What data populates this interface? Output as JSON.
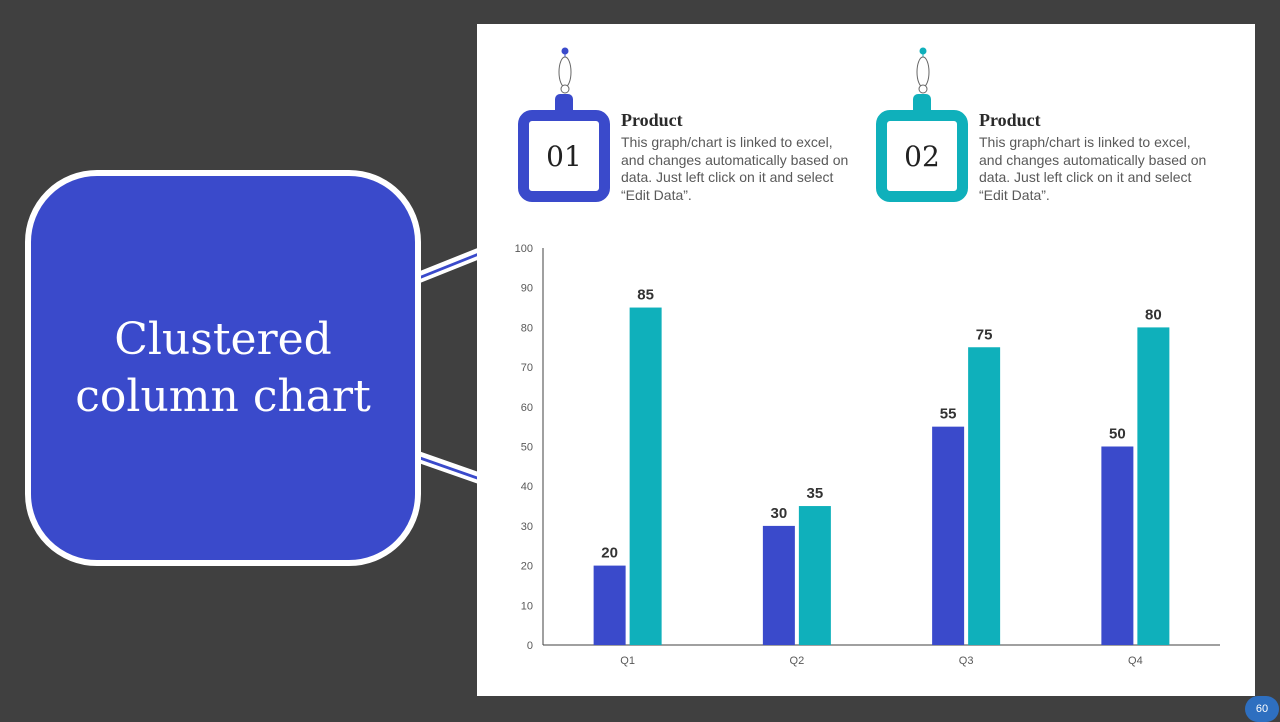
{
  "slide": {
    "title": "Clustered column chart",
    "page_number": "60",
    "colors": {
      "background": "#404040",
      "blue": "#3a4acb",
      "teal": "#0fb0bb",
      "panel": "#ffffff"
    }
  },
  "products": [
    {
      "number": "01",
      "title": "Product",
      "description": "This graph/chart is linked to excel, and changes automatically based on data. Just left click on it and select “Edit Data”.",
      "color": "#3a4acb"
    },
    {
      "number": "02",
      "title": "Product",
      "description": "This graph/chart is linked to excel, and changes automatically based on data. Just left click on it and select “Edit Data”.",
      "color": "#0fb0bb"
    }
  ],
  "chart_data": {
    "type": "bar",
    "categories": [
      "Q1",
      "Q2",
      "Q3",
      "Q4"
    ],
    "series": [
      {
        "values": [
          20,
          30,
          55,
          50
        ],
        "color": "#3a4acb"
      },
      {
        "values": [
          85,
          35,
          75,
          80
        ],
        "color": "#0fb0bb"
      }
    ],
    "ylim": [
      0,
      100
    ],
    "yticks": [
      0,
      10,
      20,
      30,
      40,
      50,
      60,
      70,
      80,
      90,
      100
    ],
    "data_labels": true,
    "grid": false,
    "legend": "none"
  }
}
